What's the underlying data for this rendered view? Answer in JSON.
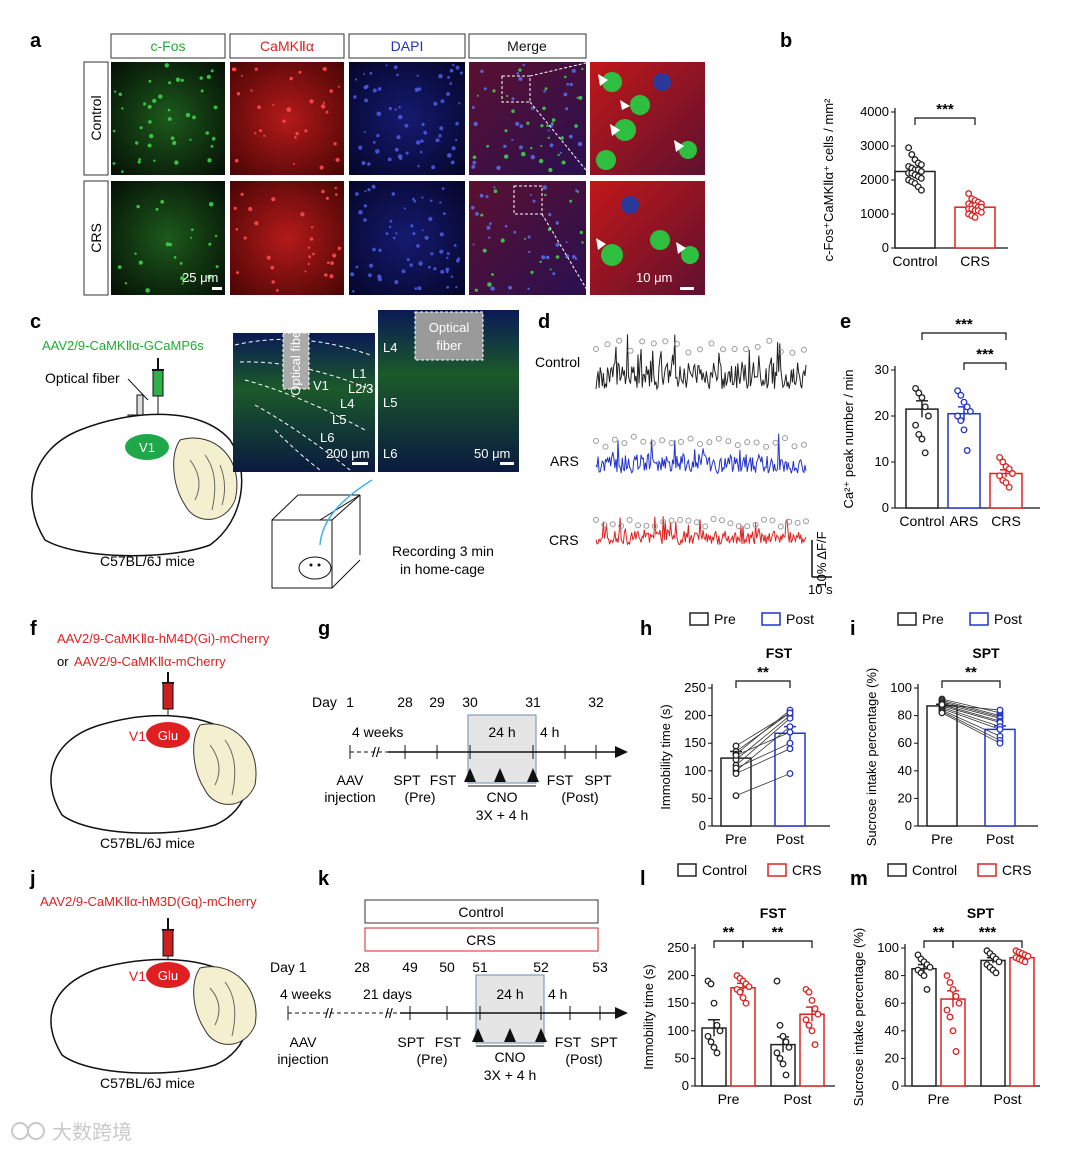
{
  "panel_letters": {
    "a": "a",
    "b": "b",
    "c": "c",
    "d": "d",
    "e": "e",
    "f": "f",
    "g": "g",
    "h": "h",
    "i": "i",
    "j": "j",
    "k": "k",
    "l": "l",
    "m": "m"
  },
  "panel_a": {
    "channels": [
      "c-Fos",
      "CaMKⅡα",
      "DAPI",
      "Merge"
    ],
    "channel_colors": [
      "#22aa33",
      "#dd2222",
      "#2233bb",
      "#111111"
    ],
    "rows": [
      "Control",
      "CRS"
    ],
    "scale_left": "25 μm",
    "scale_right": "10 μm"
  },
  "panel_c": {
    "virus": "AAV2/9-CaMKⅡα-GCaMP6s",
    "optical_fiber": "Optical fiber",
    "region": "V1",
    "mice": "C57BL/6J mice",
    "recording": [
      "Recording 3 min",
      "in home-cage"
    ],
    "histo_fiber": "Optical fiber",
    "histo_layers_left": [
      "V1",
      "L1",
      "L2/3",
      "L4",
      "L5",
      "L6"
    ],
    "histo_scale_left": "200 μm",
    "histo_fiber_right": [
      "Optical",
      "fiber"
    ],
    "histo_layers_right": [
      "L4",
      "L5",
      "L6"
    ],
    "histo_scale_right": "50 μm"
  },
  "panel_d": {
    "traces": [
      {
        "name": "Control",
        "color": "#222222"
      },
      {
        "name": "ARS",
        "color": "#2233cc"
      },
      {
        "name": "CRS",
        "color": "#dd2222"
      }
    ],
    "scale_y": "10% ΔF/F",
    "scale_x": "10 s"
  },
  "panel_f": {
    "virus1": "AAV2/9-CaMKⅡα-hM4D(Gi)-mCherry",
    "or_word": "or",
    "virus2": "AAV2/9-CaMKⅡα-mCherry",
    "region": "V1",
    "cell": "Glu",
    "mice": "C57BL/6J mice"
  },
  "panel_g": {
    "day_word": "Day",
    "days": [
      "1",
      "28",
      "29",
      "30",
      "31",
      "32"
    ],
    "weeks": "4 weeks",
    "box": "24 h",
    "after": "4 h",
    "events": [
      [
        "AAV",
        "injection"
      ],
      [
        "SPT",
        "(Pre)"
      ],
      [
        "FST",
        ""
      ],
      [
        "FST",
        "(Post)"
      ],
      [
        "SPT",
        ""
      ]
    ],
    "cno": [
      "CNO",
      "3X + 4 h"
    ]
  },
  "panel_j": {
    "virus": "AAV2/9-CaMKⅡα-hM3D(Gq)-mCherry",
    "region": "V1",
    "cell": "Glu",
    "mice": "C57BL/6J mice"
  },
  "panel_k": {
    "box_control": "Control",
    "box_crs": "CRS",
    "day_word": "Day 1",
    "days": [
      "28",
      "49",
      "50",
      "51",
      "52",
      "53"
    ],
    "weeks": "4 weeks",
    "days21": "21 days",
    "box": "24 h",
    "after": "4 h",
    "events": [
      [
        "AAV",
        "injection"
      ],
      [
        "SPT",
        ""
      ],
      [
        "FST",
        "(Pre)"
      ],
      [
        "FST",
        "(Post)"
      ],
      [
        "SPT",
        ""
      ]
    ],
    "cno": [
      "CNO",
      "3X + 4 h"
    ]
  },
  "watermark": "大数跨境",
  "chart_data": [
    {
      "id": "b",
      "type": "bar",
      "categories": [
        "Control",
        "CRS"
      ],
      "values": [
        2250,
        1200
      ],
      "errors": [
        80,
        50
      ],
      "points": [
        [
          2950,
          2750,
          2600,
          2500,
          2450,
          2400,
          2350,
          2300,
          2300,
          2250,
          2200,
          2200,
          2150,
          2100,
          2050,
          2000,
          1950,
          1900,
          1800,
          1700
        ],
        [
          1600,
          1450,
          1400,
          1350,
          1300,
          1300,
          1250,
          1250,
          1200,
          1200,
          1150,
          1150,
          1100,
          1100,
          1050,
          1000,
          950,
          900
        ]
      ],
      "colors": [
        "#222222",
        "#dd2222"
      ],
      "ylabel": "c-Fos⁺CaMKⅡα⁺ cells / mm²",
      "ylim": [
        0,
        4000
      ],
      "yticks": [
        0,
        1000,
        2000,
        3000,
        4000
      ],
      "sig": [
        "***"
      ]
    },
    {
      "id": "e",
      "type": "bar",
      "categories": [
        "Control",
        "ARS",
        "CRS"
      ],
      "values": [
        21.5,
        20.5,
        7.5
      ],
      "errors": [
        1.8,
        1.5,
        0.8
      ],
      "points": [
        [
          26,
          25,
          24,
          22,
          20,
          18,
          16,
          15,
          12
        ],
        [
          25.5,
          24.5,
          23,
          22,
          21,
          20,
          19,
          17,
          12.5
        ],
        [
          11,
          10,
          9,
          8.5,
          7.5,
          7,
          6,
          5.5,
          4.5
        ]
      ],
      "colors": [
        "#222222",
        "#2233cc",
        "#dd2222"
      ],
      "ylabel": "Ca²⁺ peak number / min",
      "ylim": [
        0,
        30
      ],
      "yticks": [
        0,
        10,
        20,
        30
      ],
      "sig": [
        "***",
        "***"
      ]
    },
    {
      "id": "h",
      "type": "bar",
      "title": "FST",
      "categories": [
        "Pre",
        "Post"
      ],
      "values": [
        123,
        168
      ],
      "errors": [
        12,
        12
      ],
      "paired": [
        [
          135,
          205
        ],
        [
          130,
          210
        ],
        [
          120,
          200
        ],
        [
          110,
          195
        ],
        [
          100,
          180
        ],
        [
          128,
          170
        ],
        [
          105,
          150
        ],
        [
          95,
          140
        ],
        [
          55,
          95
        ],
        [
          145,
          205
        ]
      ],
      "colors": [
        "#222222",
        "#2233cc"
      ],
      "legend": [
        "Pre",
        "Post"
      ],
      "ylabel": "Immobility time (s)",
      "ylim": [
        0,
        250
      ],
      "yticks": [
        0,
        50,
        100,
        150,
        200,
        250
      ],
      "sig": [
        "**"
      ]
    },
    {
      "id": "i",
      "type": "bar",
      "title": "SPT",
      "categories": [
        "Pre",
        "Post"
      ],
      "values": [
        87,
        70
      ],
      "errors": [
        1.2,
        2.5
      ],
      "paired": [
        [
          92,
          82
        ],
        [
          91,
          80
        ],
        [
          90,
          79
        ],
        [
          89,
          78
        ],
        [
          88,
          76
        ],
        [
          87,
          75
        ],
        [
          86,
          72
        ],
        [
          85,
          70
        ],
        [
          84,
          65
        ],
        [
          83,
          62
        ],
        [
          82,
          60
        ],
        [
          88,
          84
        ]
      ],
      "colors": [
        "#222222",
        "#2233cc"
      ],
      "legend": [
        "Pre",
        "Post"
      ],
      "ylabel": "Sucrose intake percentage (%)",
      "ylim": [
        0,
        100
      ],
      "yticks": [
        0,
        20,
        40,
        60,
        80,
        100
      ],
      "sig": [
        "**"
      ]
    },
    {
      "id": "l",
      "type": "bar",
      "title": "FST",
      "groups": [
        "Pre",
        "Post"
      ],
      "series_names": [
        "Control",
        "CRS"
      ],
      "values": [
        [
          105,
          178
        ],
        [
          75,
          130
        ]
      ],
      "errors": [
        [
          15,
          8
        ],
        [
          14,
          13
        ]
      ],
      "points": [
        [
          [
            190,
            185,
            150,
            110,
            100,
            90,
            80,
            70,
            60
          ],
          [
            200,
            195,
            190,
            185,
            180,
            175,
            170,
            160,
            150
          ]
        ],
        [
          [
            190,
            110,
            90,
            80,
            70,
            60,
            50,
            40,
            20
          ],
          [
            175,
            170,
            155,
            140,
            130,
            120,
            110,
            100,
            75
          ]
        ]
      ],
      "colors": [
        "#222222",
        "#dd2222"
      ],
      "legend": [
        "Control",
        "CRS"
      ],
      "ylabel": "Immobility time (s)",
      "ylim": [
        0,
        250
      ],
      "yticks": [
        0,
        50,
        100,
        150,
        200,
        250
      ],
      "sig": [
        "**",
        "**"
      ]
    },
    {
      "id": "m",
      "type": "bar",
      "title": "SPT",
      "groups": [
        "Pre",
        "Post"
      ],
      "series_names": [
        "Control",
        "CRS"
      ],
      "values": [
        [
          85,
          63
        ],
        [
          91,
          93
        ]
      ],
      "errors": [
        [
          3,
          6
        ],
        [
          2,
          1.5
        ]
      ],
      "points": [
        [
          [
            95,
            92,
            90,
            88,
            86,
            84,
            82,
            80,
            70
          ],
          [
            80,
            75,
            70,
            65,
            60,
            55,
            50,
            40,
            25
          ]
        ],
        [
          [
            98,
            96,
            94,
            92,
            90,
            88,
            86,
            84,
            82
          ],
          [
            98,
            97,
            96,
            95,
            94,
            93,
            92,
            91,
            90
          ]
        ]
      ],
      "colors": [
        "#222222",
        "#dd2222"
      ],
      "legend": [
        "Control",
        "CRS"
      ],
      "ylabel": "Sucrose intake percentage (%)",
      "ylim": [
        0,
        100
      ],
      "yticks": [
        0,
        20,
        40,
        60,
        80,
        100
      ],
      "sig": [
        "**",
        "***"
      ]
    }
  ]
}
